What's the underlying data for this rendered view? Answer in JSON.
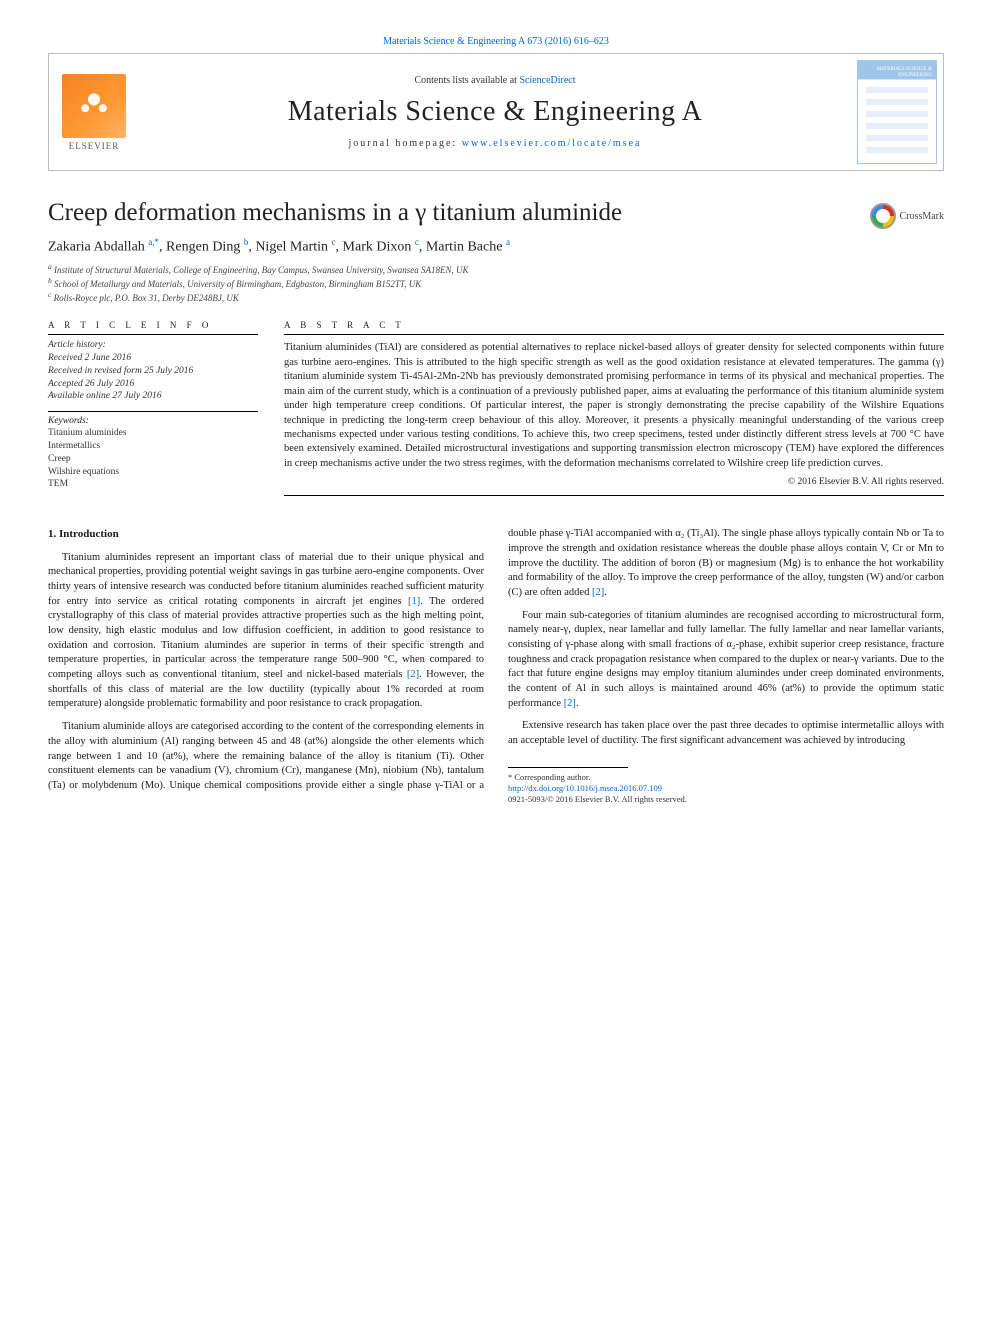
{
  "header": {
    "top_link_text": "Materials Science & Engineering A 673 (2016) 616–623",
    "contents_prefix": "Contents lists available at ",
    "contents_link": "ScienceDirect",
    "journal_title": "Materials Science & Engineering A",
    "homepage_prefix": "journal homepage: ",
    "homepage_link": "www.elsevier.com/locate/msea",
    "elsevier_label": "ELSEVIER",
    "cover_label": "MATERIALS SCIENCE & ENGINEERING",
    "crossmark_label": "CrossMark"
  },
  "article": {
    "title": "Creep deformation mechanisms in a γ titanium aluminide",
    "authors_html": "Zakaria Abdallah",
    "authors": [
      {
        "name": "Zakaria Abdallah",
        "marks": "a,*"
      },
      {
        "name": "Rengen Ding",
        "marks": "b"
      },
      {
        "name": "Nigel Martin",
        "marks": "c"
      },
      {
        "name": "Mark Dixon",
        "marks": "c"
      },
      {
        "name": "Martin Bache",
        "marks": "a"
      }
    ],
    "affiliations": [
      "a Institute of Structural Materials, College of Engineering, Bay Campus, Swansea University, Swansea SA18EN, UK",
      "b School of Metallurgy and Materials, University of Birmingham, Edgbaston, Birmingham B152TT, UK",
      "c Rolls-Royce plc, P.O. Box 31, Derby DE248BJ, UK"
    ]
  },
  "info": {
    "heading": "A R T I C L E  I N F O",
    "history_label": "Article history:",
    "history": [
      "Received 2 June 2016",
      "Received in revised form 25 July 2016",
      "Accepted 26 July 2016",
      "Available online 27 July 2016"
    ],
    "keywords_label": "Keywords:",
    "keywords": [
      "Titanium aluminides",
      "Intermetallics",
      "Creep",
      "Wilshire equations",
      "TEM"
    ]
  },
  "abstract": {
    "heading": "A B S T R A C T",
    "text": "Titanium aluminides (TiAl) are considered as potential alternatives to replace nickel-based alloys of greater density for selected components within future gas turbine aero-engines. This is attributed to the high specific strength as well as the good oxidation resistance at elevated temperatures. The gamma (γ) titanium aluminide system Ti-45Al-2Mn-2Nb has previously demonstrated promising performance in terms of its physical and mechanical properties. The main aim of the current study, which is a continuation of a previously published paper, aims at evaluating the performance of this titanium aluminide system under high temperature creep conditions. Of particular interest, the paper is strongly demonstrating the precise capability of the Wilshire Equations technique in predicting the long-term creep behaviour of this alloy. Moreover, it presents a physically meaningful understanding of the various creep mechanisms expected under various testing conditions. To achieve this, two creep specimens, tested under distinctly different stress levels at 700 °C have been extensively examined. Detailed microstructural investigations and supporting transmission electron microscopy (TEM) have explored the differences in creep mechanisms active under the two stress regimes, with the deformation mechanisms correlated to Wilshire creep life prediction curves.",
    "copyright": "© 2016 Elsevier B.V. All rights reserved."
  },
  "body": {
    "section_number": "1.",
    "section_title": "Introduction",
    "p1": "Titanium aluminides represent an important class of material due to their unique physical and mechanical properties, providing potential weight savings in gas turbine aero-engine components. Over thirty years of intensive research was conducted before titanium aluminides reached sufficient maturity for entry into service as critical rotating components in aircraft jet engines [1]. The ordered crystallography of this class of material provides attractive properties such as the high melting point, low density, high elastic modulus and low diffusion coefficient, in addition to good resistance to oxidation and corrosion. Titanium alumindes are superior in terms of their specific strength and temperature properties, in particular across the temperature range 500–900 °C, when compared to competing alloys such as conventional titanium, steel and nickel-based materials [2]. However, the shortfalls of this class of material are the low ductility (typically about 1% recorded at room temperature) alongside problematic formability and poor resistance to crack propagation.",
    "p2": "Titanium aluminide alloys are categorised according to the content of the corresponding elements in the alloy with aluminium (Al) ranging between 45 and 48 (at%) alongside the other elements which range between 1 and 10 (at%), where the remaining balance of the alloy is titanium (Ti). Other constituent elements can be vanadium (V), chromium (Cr), manganese (Mn), niobium (Nb), tantalum (Ta) or molybdenum (Mo). Unique chemical compositions provide either a single phase γ-TiAl or a double phase γ-TiAl accompanied with α₂ (Ti₃Al). The single phase alloys typically contain Nb or Ta to improve the strength and oxidation resistance whereas the double phase alloys contain V, Cr or Mn to improve the ductility. The addition of boron (B) or magnesium (Mg) is to enhance the hot workability and formability of the alloy. To improve the creep performance of the alloy, tungsten (W) and/or carbon (C) are often added [2].",
    "p3": "Four main sub-categories of titanium alumindes are recognised according to microstructural form, namely near-γ, duplex, near lamellar and fully lamellar. The fully lamellar and near lamellar variants, consisting of γ-phase along with small fractions of α₂-phase, exhibit superior creep resistance, fracture toughness and crack propagation resistance when compared to the duplex or near-γ variants. Due to the fact that future engine designs may employ titanium alumindes under creep dominated environments, the content of Al in such alloys is maintained around 46% (at%) to provide the optimum static performance [2].",
    "p4": "Extensive research has taken place over the past three decades to optimise intermetallic alloys with an acceptable level of ductility. The first significant advancement was achieved by introducing"
  },
  "footnote": {
    "corr": "* Corresponding author.",
    "doi": "http://dx.doi.org/10.1016/j.msea.2016.07.109",
    "issn": "0921-5093/© 2016 Elsevier B.V. All rights reserved."
  },
  "style": {
    "link_color": "#0066cc",
    "text_color": "#1a1a1a",
    "body_fontsize": 10.5,
    "title_fontsize": 25,
    "journal_fontsize": 28
  }
}
